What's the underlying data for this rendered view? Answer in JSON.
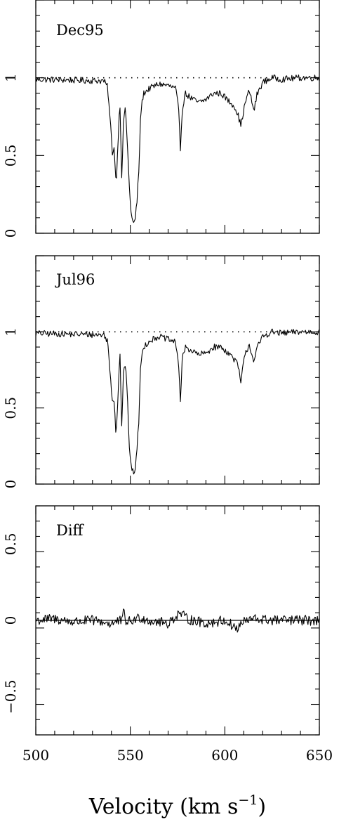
{
  "chart_data": {
    "type": "line",
    "xlabel_prefix": "Velocity (km s",
    "xlabel_sup": "−1",
    "xlabel_suffix": ")",
    "xlim": [
      500,
      650
    ],
    "x_ticks": [
      500,
      550,
      600,
      650
    ],
    "x_tick_labels": [
      "500",
      "550",
      "600",
      "650"
    ],
    "grid": false,
    "legend": "none",
    "panels": [
      {
        "label": "Dec95",
        "ylim": [
          0,
          1.5
        ],
        "y_ticks": [
          0,
          0.5,
          1
        ],
        "y_tick_labels": [
          "0",
          "0.5",
          "1"
        ],
        "reference_line": {
          "y": 1,
          "style": "dotted"
        },
        "noise": 0.012,
        "series": {
          "x": [
            500,
            536,
            538,
            539.5,
            540.5,
            541.5,
            542.5,
            543.5,
            544.5,
            545.5,
            546.5,
            547.5,
            548.5,
            549.5,
            550.5,
            551.5,
            552.5,
            553.5,
            554.5,
            555.5,
            557,
            560,
            565,
            570,
            574,
            575.5,
            576.5,
            577.5,
            579,
            582,
            586,
            590,
            594,
            598,
            602,
            605,
            607,
            608.5,
            609.5,
            611,
            613,
            614.5,
            615.5,
            617,
            620,
            625,
            630,
            640,
            650
          ],
          "y": [
            0.99,
            0.98,
            0.94,
            0.7,
            0.52,
            0.55,
            0.3,
            0.6,
            0.85,
            0.35,
            0.75,
            0.8,
            0.55,
            0.3,
            0.12,
            0.06,
            0.08,
            0.2,
            0.4,
            0.78,
            0.9,
            0.93,
            0.96,
            0.95,
            0.93,
            0.8,
            0.55,
            0.8,
            0.9,
            0.87,
            0.84,
            0.86,
            0.9,
            0.9,
            0.85,
            0.82,
            0.76,
            0.69,
            0.76,
            0.85,
            0.92,
            0.83,
            0.79,
            0.89,
            0.97,
            1.0,
            0.99,
            1.0,
            1.0
          ]
        }
      },
      {
        "label": "Jul96",
        "ylim": [
          0,
          1.5
        ],
        "y_ticks": [
          0,
          0.5,
          1
        ],
        "y_tick_labels": [
          "0",
          "0.5",
          "1"
        ],
        "reference_line": {
          "y": 1,
          "style": "dotted"
        },
        "noise": 0.012,
        "series": {
          "x": [
            500,
            536,
            538,
            539.5,
            540.5,
            541.5,
            542.5,
            543.5,
            544.5,
            545.5,
            546.5,
            547.5,
            548.5,
            549.5,
            550.5,
            551.5,
            552.5,
            553.5,
            554.5,
            555.5,
            557,
            560,
            565,
            570,
            574,
            575.5,
            576.5,
            577.5,
            579,
            582,
            586,
            590,
            594,
            598,
            602,
            605,
            607,
            608.5,
            609.5,
            611,
            613,
            614.5,
            615.5,
            617,
            620,
            625,
            630,
            640,
            650
          ],
          "y": [
            0.99,
            0.98,
            0.94,
            0.7,
            0.55,
            0.56,
            0.3,
            0.6,
            0.88,
            0.36,
            0.78,
            0.78,
            0.55,
            0.25,
            0.1,
            0.08,
            0.09,
            0.22,
            0.42,
            0.8,
            0.9,
            0.94,
            0.97,
            0.95,
            0.93,
            0.8,
            0.55,
            0.82,
            0.9,
            0.88,
            0.85,
            0.86,
            0.9,
            0.9,
            0.86,
            0.82,
            0.78,
            0.66,
            0.77,
            0.86,
            0.92,
            0.84,
            0.81,
            0.89,
            0.97,
            1.0,
            0.99,
            1.0,
            1.0
          ]
        }
      },
      {
        "label": "Diff",
        "ylim": [
          -0.75,
          0.75
        ],
        "y_ticks": [
          -0.5,
          0,
          0.5
        ],
        "y_tick_labels": [
          "−0.5",
          "0",
          "0.5"
        ],
        "reference_line": {
          "y": 0,
          "style": "solid"
        },
        "noise": 0.02,
        "series": {
          "x": [
            500,
            510,
            520,
            530,
            540,
            546,
            546.5,
            547,
            550,
            555,
            560,
            570,
            576,
            580,
            590,
            600,
            606,
            607,
            608,
            615,
            625,
            640,
            650
          ],
          "y": [
            0,
            0.01,
            -0.01,
            0,
            -0.02,
            0,
            0.09,
            0,
            -0.01,
            0.02,
            0,
            -0.02,
            0.05,
            0.01,
            -0.02,
            0,
            -0.05,
            -0.07,
            -0.02,
            0.01,
            0,
            0,
            0
          ]
        }
      }
    ]
  }
}
